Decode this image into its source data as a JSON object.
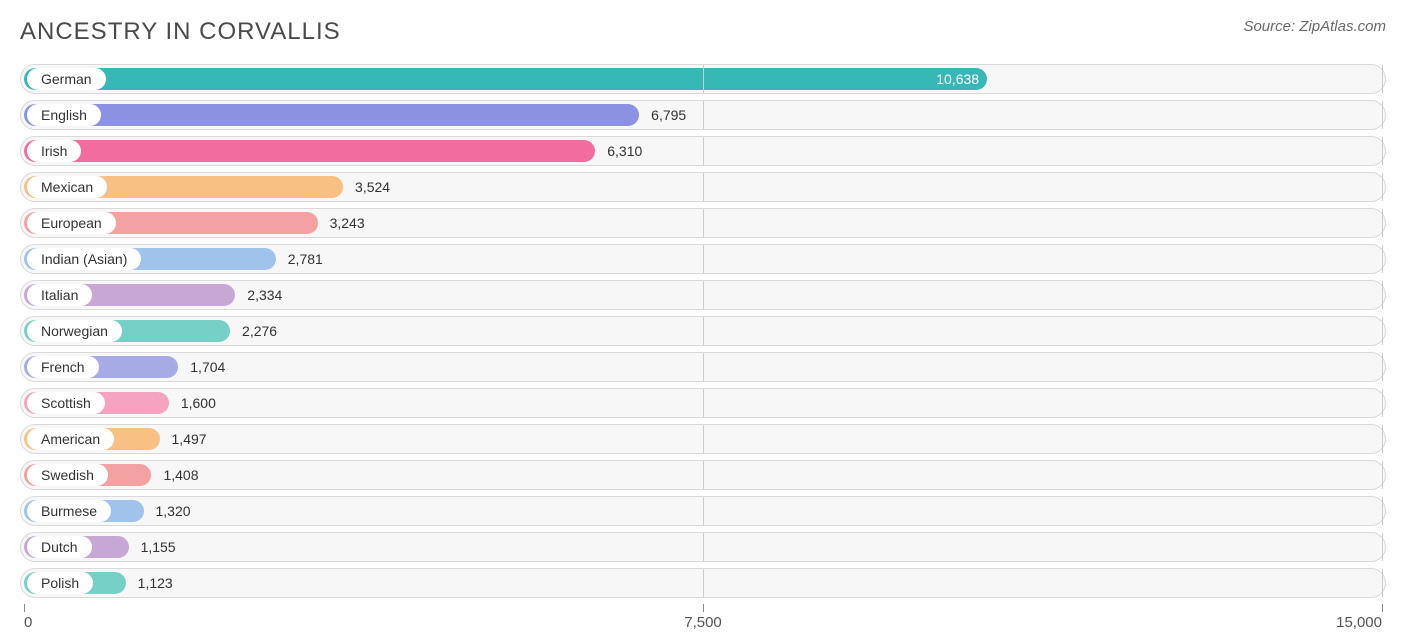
{
  "header": {
    "title": "ANCESTRY IN CORVALLIS",
    "source": "Source: ZipAtlas.com"
  },
  "chart": {
    "type": "bar",
    "xmin": 0,
    "xmax": 15000,
    "ticks": [
      0,
      7500,
      15000
    ],
    "tick_labels": [
      "0",
      "7,500",
      "15,000"
    ],
    "track_bg": "#f7f7f7",
    "track_border": "#d9d9d9",
    "pill_bg": "#ffffff",
    "label_fontsize": 14,
    "value_fontsize": 14,
    "title_fontsize": 24,
    "title_color": "#4a4a4a",
    "source_color": "#6a6a6a",
    "rows": [
      {
        "label": "German",
        "value": 10638,
        "display": "10,638",
        "color": "#35b8b6",
        "value_inside": true,
        "value_text_color": "#ffffff"
      },
      {
        "label": "English",
        "value": 6795,
        "display": "6,795",
        "color": "#8b92e2",
        "value_inside": false,
        "value_text_color": "#333333"
      },
      {
        "label": "Irish",
        "value": 6310,
        "display": "6,310",
        "color": "#f26ca0",
        "value_inside": false,
        "value_text_color": "#333333"
      },
      {
        "label": "Mexican",
        "value": 3524,
        "display": "3,524",
        "color": "#f9c084",
        "value_inside": false,
        "value_text_color": "#333333"
      },
      {
        "label": "European",
        "value": 3243,
        "display": "3,243",
        "color": "#f4a1a1",
        "value_inside": false,
        "value_text_color": "#333333"
      },
      {
        "label": "Indian (Asian)",
        "value": 2781,
        "display": "2,781",
        "color": "#9fc3ea",
        "value_inside": false,
        "value_text_color": "#333333"
      },
      {
        "label": "Italian",
        "value": 2334,
        "display": "2,334",
        "color": "#c7a8d4",
        "value_inside": false,
        "value_text_color": "#333333"
      },
      {
        "label": "Norwegian",
        "value": 2276,
        "display": "2,276",
        "color": "#77d0c7",
        "value_inside": false,
        "value_text_color": "#333333"
      },
      {
        "label": "French",
        "value": 1704,
        "display": "1,704",
        "color": "#a7abe5",
        "value_inside": false,
        "value_text_color": "#333333"
      },
      {
        "label": "Scottish",
        "value": 1600,
        "display": "1,600",
        "color": "#f5a3c0",
        "value_inside": false,
        "value_text_color": "#333333"
      },
      {
        "label": "American",
        "value": 1497,
        "display": "1,497",
        "color": "#f9c084",
        "value_inside": false,
        "value_text_color": "#333333"
      },
      {
        "label": "Swedish",
        "value": 1408,
        "display": "1,408",
        "color": "#f4a1a1",
        "value_inside": false,
        "value_text_color": "#333333"
      },
      {
        "label": "Burmese",
        "value": 1320,
        "display": "1,320",
        "color": "#9fc3ea",
        "value_inside": false,
        "value_text_color": "#333333"
      },
      {
        "label": "Dutch",
        "value": 1155,
        "display": "1,155",
        "color": "#c7a8d4",
        "value_inside": false,
        "value_text_color": "#333333"
      },
      {
        "label": "Polish",
        "value": 1123,
        "display": "1,123",
        "color": "#77d0c7",
        "value_inside": false,
        "value_text_color": "#333333"
      }
    ]
  }
}
